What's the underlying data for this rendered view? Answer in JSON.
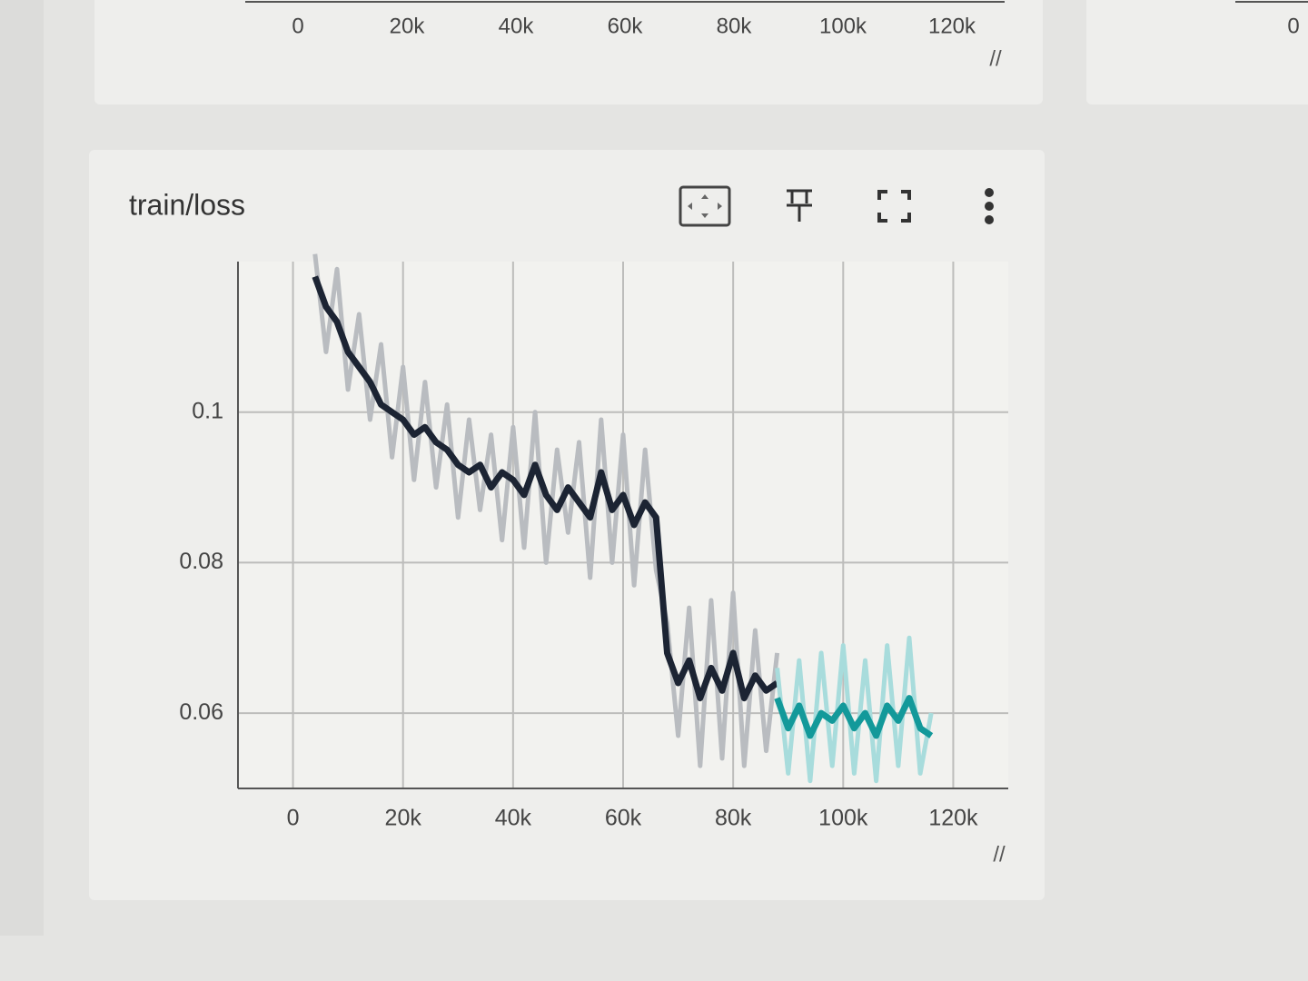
{
  "top_card": {
    "x_labels": [
      "0",
      "20k",
      "40k",
      "60k",
      "80k",
      "100k",
      "120k"
    ]
  },
  "side_card": {
    "x_label": "0"
  },
  "chart_data": {
    "type": "line",
    "title": "train/loss",
    "xlim": [
      -10000,
      130000
    ],
    "ylim": [
      0.05,
      0.12
    ],
    "xticks": [
      0,
      {
        "value": 20000,
        "label": "20k"
      },
      {
        "value": 40000,
        "label": "40k"
      },
      {
        "value": 60000,
        "label": "60k"
      },
      {
        "value": 80000,
        "label": "80k"
      },
      {
        "value": 100000,
        "label": "100k"
      },
      {
        "value": 120000,
        "label": "120k"
      }
    ],
    "yticks": [
      0.06,
      0.08,
      0.1
    ],
    "grid": true,
    "series": [
      {
        "color": "#b9bcc0",
        "width": 5,
        "x": [
          4000,
          6000,
          8000,
          10000,
          12000,
          14000,
          16000,
          18000,
          20000,
          22000,
          24000,
          26000,
          28000,
          30000,
          32000,
          34000,
          36000,
          38000,
          40000,
          42000,
          44000,
          46000,
          48000,
          50000,
          52000,
          54000,
          56000,
          58000,
          60000,
          62000,
          64000,
          66000,
          68000,
          70000,
          72000,
          74000,
          76000,
          78000,
          80000,
          82000,
          84000,
          86000,
          88000
        ],
        "values": [
          0.121,
          0.108,
          0.119,
          0.103,
          0.113,
          0.099,
          0.109,
          0.094,
          0.106,
          0.091,
          0.104,
          0.09,
          0.101,
          0.086,
          0.099,
          0.087,
          0.097,
          0.083,
          0.098,
          0.082,
          0.1,
          0.08,
          0.095,
          0.084,
          0.096,
          0.078,
          0.099,
          0.08,
          0.097,
          0.077,
          0.095,
          0.079,
          0.072,
          0.057,
          0.074,
          0.053,
          0.075,
          0.054,
          0.076,
          0.053,
          0.071,
          0.055,
          0.068
        ]
      },
      {
        "color": "#1c2433",
        "width": 7,
        "x": [
          4000,
          6000,
          8000,
          10000,
          12000,
          14000,
          16000,
          18000,
          20000,
          22000,
          24000,
          26000,
          28000,
          30000,
          32000,
          34000,
          36000,
          38000,
          40000,
          42000,
          44000,
          46000,
          48000,
          50000,
          52000,
          54000,
          56000,
          58000,
          60000,
          62000,
          64000,
          66000,
          68000,
          70000,
          72000,
          74000,
          76000,
          78000,
          80000,
          82000,
          84000,
          86000,
          88000
        ],
        "values": [
          0.118,
          0.114,
          0.112,
          0.108,
          0.106,
          0.104,
          0.101,
          0.1,
          0.099,
          0.097,
          0.098,
          0.096,
          0.095,
          0.093,
          0.092,
          0.093,
          0.09,
          0.092,
          0.091,
          0.089,
          0.093,
          0.089,
          0.087,
          0.09,
          0.088,
          0.086,
          0.092,
          0.087,
          0.089,
          0.085,
          0.088,
          0.086,
          0.068,
          0.064,
          0.067,
          0.062,
          0.066,
          0.063,
          0.068,
          0.062,
          0.065,
          0.063,
          0.064
        ]
      },
      {
        "color": "#a8dcdc",
        "width": 5,
        "x": [
          88000,
          90000,
          92000,
          94000,
          96000,
          98000,
          100000,
          102000,
          104000,
          106000,
          108000,
          110000,
          112000,
          114000,
          116000
        ],
        "values": [
          0.066,
          0.052,
          0.067,
          0.051,
          0.068,
          0.053,
          0.069,
          0.052,
          0.067,
          0.051,
          0.069,
          0.053,
          0.07,
          0.052,
          0.06
        ]
      },
      {
        "color": "#13999a",
        "width": 7,
        "x": [
          88000,
          90000,
          92000,
          94000,
          96000,
          98000,
          100000,
          102000,
          104000,
          106000,
          108000,
          110000,
          112000,
          114000,
          116000
        ],
        "values": [
          0.062,
          0.058,
          0.061,
          0.057,
          0.06,
          0.059,
          0.061,
          0.058,
          0.06,
          0.057,
          0.061,
          0.059,
          0.062,
          0.058,
          0.057
        ]
      }
    ]
  }
}
